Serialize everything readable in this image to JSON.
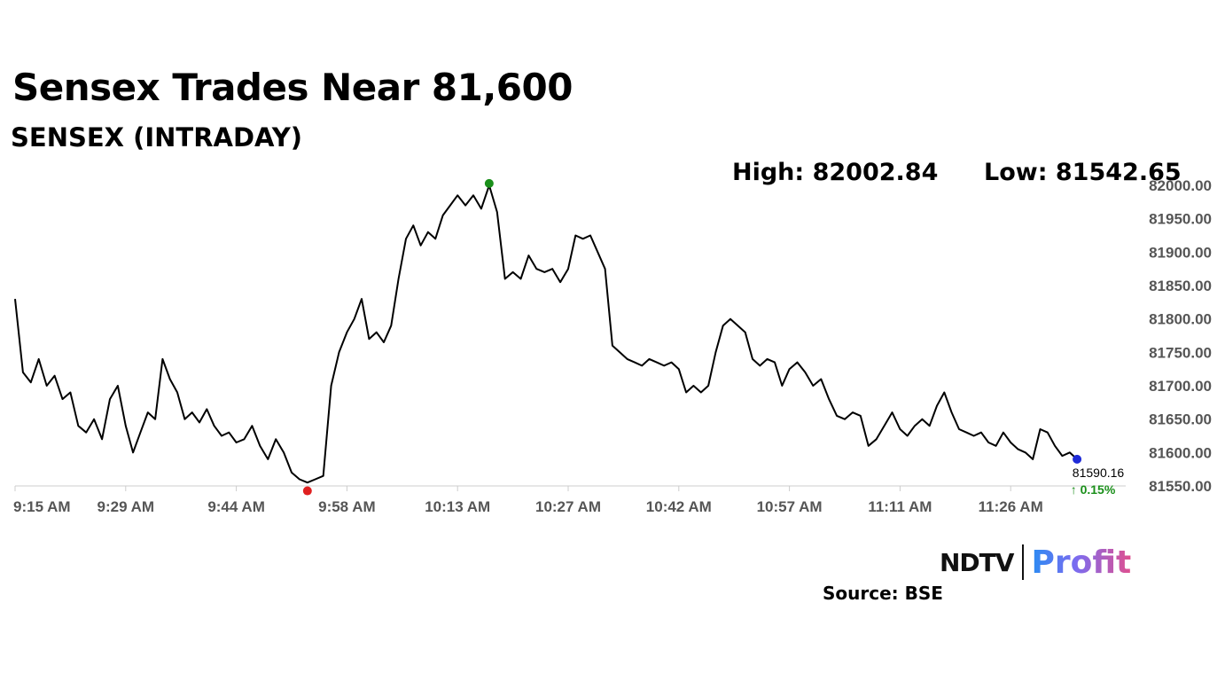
{
  "header": {
    "title": "Sensex Trades Near 81,600",
    "subtitle": "SENSEX (INTRADAY)",
    "high_label": "High: 82002.84",
    "low_label": "Low: 81542.65"
  },
  "footer": {
    "logo_text_left": "NDTV",
    "logo_text_right": "Profit",
    "source": "Source: BSE"
  },
  "chart_data": {
    "type": "line",
    "title": "SENSEX (INTRADAY)",
    "xlabel": "",
    "ylabel": "",
    "ylim": [
      81550,
      82000
    ],
    "y_ticks": [
      "82000.00",
      "81950.00",
      "81900.00",
      "81850.00",
      "81800.00",
      "81750.00",
      "81700.00",
      "81650.00",
      "81600.00",
      "81550.00"
    ],
    "x_ticks": [
      "9:15 AM",
      "9:29 AM",
      "9:44 AM",
      "9:58 AM",
      "10:13 AM",
      "10:27 AM",
      "10:42 AM",
      "10:57 AM",
      "11:11 AM",
      "11:26 AM"
    ],
    "grid": false,
    "legend": "none",
    "line_color": "#000000",
    "high": {
      "value": 82002.84,
      "time": "10:13 AM",
      "marker_color": "#1a8f1a"
    },
    "low": {
      "value": 81542.65,
      "time": "9:44 AM",
      "marker_color": "#e02020"
    },
    "last": {
      "value": "81590.16",
      "change": "0.15%",
      "marker_color": "#1f2bd8"
    },
    "series": [
      {
        "points": [
          [
            "9:15 AM",
            81830
          ],
          [
            "9:16 AM",
            81720
          ],
          [
            "9:17 AM",
            81705
          ],
          [
            "9:18 AM",
            81740
          ],
          [
            "9:19 AM",
            81700
          ],
          [
            "9:20 AM",
            81715
          ],
          [
            "9:21 AM",
            81680
          ],
          [
            "9:22 AM",
            81690
          ],
          [
            "9:23 AM",
            81640
          ],
          [
            "9:24 AM",
            81630
          ],
          [
            "9:25 AM",
            81650
          ],
          [
            "9:26 AM",
            81620
          ],
          [
            "9:27 AM",
            81680
          ],
          [
            "9:28 AM",
            81700
          ],
          [
            "9:29 AM",
            81640
          ],
          [
            "9:30 AM",
            81600
          ],
          [
            "9:31 AM",
            81630
          ],
          [
            "9:32 AM",
            81660
          ],
          [
            "9:33 AM",
            81650
          ],
          [
            "9:34 AM",
            81740
          ],
          [
            "9:35 AM",
            81710
          ],
          [
            "9:36 AM",
            81690
          ],
          [
            "9:37 AM",
            81650
          ],
          [
            "9:38 AM",
            81660
          ],
          [
            "9:39 AM",
            81645
          ],
          [
            "9:40 AM",
            81665
          ],
          [
            "9:41 AM",
            81640
          ],
          [
            "9:42 AM",
            81625
          ],
          [
            "9:43 AM",
            81630
          ],
          [
            "9:44 AM",
            81615
          ],
          [
            "9:45 AM",
            81620
          ],
          [
            "9:46 AM",
            81640
          ],
          [
            "9:47 AM",
            81610
          ],
          [
            "9:48 AM",
            81590
          ],
          [
            "9:49 AM",
            81620
          ],
          [
            "9:50 AM",
            81600
          ],
          [
            "9:51 AM",
            81570
          ],
          [
            "9:52 AM",
            81560
          ],
          [
            "9:53 AM",
            81555
          ],
          [
            "9:54 AM",
            81560
          ],
          [
            "9:55 AM",
            81565
          ],
          [
            "9:56 AM",
            81700
          ],
          [
            "9:57 AM",
            81750
          ],
          [
            "9:58 AM",
            81780
          ],
          [
            "9:59 AM",
            81800
          ],
          [
            "10:00 AM",
            81830
          ],
          [
            "10:01 AM",
            81770
          ],
          [
            "10:02 AM",
            81780
          ],
          [
            "10:03 AM",
            81765
          ],
          [
            "10:04 AM",
            81790
          ],
          [
            "10:05 AM",
            81860
          ],
          [
            "10:06 AM",
            81920
          ],
          [
            "10:07 AM",
            81940
          ],
          [
            "10:08 AM",
            81910
          ],
          [
            "10:09 AM",
            81930
          ],
          [
            "10:10 AM",
            81920
          ],
          [
            "10:11 AM",
            81955
          ],
          [
            "10:12 AM",
            81970
          ],
          [
            "10:13 AM",
            81985
          ],
          [
            "10:14 AM",
            81970
          ],
          [
            "10:15 AM",
            81985
          ],
          [
            "10:16 AM",
            81965
          ],
          [
            "10:17 AM",
            82000
          ],
          [
            "10:18 AM",
            81960
          ],
          [
            "10:19 AM",
            81860
          ],
          [
            "10:20 AM",
            81870
          ],
          [
            "10:21 AM",
            81860
          ],
          [
            "10:22 AM",
            81895
          ],
          [
            "10:23 AM",
            81875
          ],
          [
            "10:24 AM",
            81870
          ],
          [
            "10:25 AM",
            81875
          ],
          [
            "10:26 AM",
            81855
          ],
          [
            "10:27 AM",
            81875
          ],
          [
            "10:28 AM",
            81925
          ],
          [
            "10:29 AM",
            81920
          ],
          [
            "10:30 AM",
            81925
          ],
          [
            "10:31 AM",
            81900
          ],
          [
            "10:32 AM",
            81875
          ],
          [
            "10:33 AM",
            81760
          ],
          [
            "10:34 AM",
            81750
          ],
          [
            "10:35 AM",
            81740
          ],
          [
            "10:36 AM",
            81735
          ],
          [
            "10:37 AM",
            81730
          ],
          [
            "10:38 AM",
            81740
          ],
          [
            "10:39 AM",
            81735
          ],
          [
            "10:40 AM",
            81730
          ],
          [
            "10:41 AM",
            81735
          ],
          [
            "10:42 AM",
            81725
          ],
          [
            "10:43 AM",
            81690
          ],
          [
            "10:44 AM",
            81700
          ],
          [
            "10:45 AM",
            81690
          ],
          [
            "10:46 AM",
            81700
          ],
          [
            "10:47 AM",
            81750
          ],
          [
            "10:48 AM",
            81790
          ],
          [
            "10:49 AM",
            81800
          ],
          [
            "10:50 AM",
            81790
          ],
          [
            "10:51 AM",
            81780
          ],
          [
            "10:52 AM",
            81740
          ],
          [
            "10:53 AM",
            81730
          ],
          [
            "10:54 AM",
            81740
          ],
          [
            "10:55 AM",
            81735
          ],
          [
            "10:56 AM",
            81700
          ],
          [
            "10:57 AM",
            81725
          ],
          [
            "10:58 AM",
            81735
          ],
          [
            "10:59 AM",
            81720
          ],
          [
            "11:00 AM",
            81700
          ],
          [
            "11:01 AM",
            81710
          ],
          [
            "11:02 AM",
            81680
          ],
          [
            "11:03 AM",
            81655
          ],
          [
            "11:04 AM",
            81650
          ],
          [
            "11:05 AM",
            81660
          ],
          [
            "11:06 AM",
            81655
          ],
          [
            "11:07 AM",
            81610
          ],
          [
            "11:08 AM",
            81620
          ],
          [
            "11:09 AM",
            81640
          ],
          [
            "11:10 AM",
            81660
          ],
          [
            "11:11 AM",
            81635
          ],
          [
            "11:12 AM",
            81625
          ],
          [
            "11:13 AM",
            81640
          ],
          [
            "11:14 AM",
            81650
          ],
          [
            "11:15 AM",
            81640
          ],
          [
            "11:16 AM",
            81670
          ],
          [
            "11:17 AM",
            81690
          ],
          [
            "11:18 AM",
            81660
          ],
          [
            "11:19 AM",
            81635
          ],
          [
            "11:20 AM",
            81630
          ],
          [
            "11:21 AM",
            81625
          ],
          [
            "11:22 AM",
            81630
          ],
          [
            "11:23 AM",
            81615
          ],
          [
            "11:24 AM",
            81610
          ],
          [
            "11:25 AM",
            81630
          ],
          [
            "11:26 AM",
            81615
          ],
          [
            "11:27 AM",
            81605
          ],
          [
            "11:28 AM",
            81600
          ],
          [
            "11:29 AM",
            81590
          ],
          [
            "11:30 AM",
            81635
          ],
          [
            "11:31 AM",
            81630
          ],
          [
            "11:32 AM",
            81610
          ],
          [
            "11:33 AM",
            81595
          ],
          [
            "11:34 AM",
            81600
          ],
          [
            "11:35 AM",
            81590
          ]
        ]
      }
    ]
  }
}
